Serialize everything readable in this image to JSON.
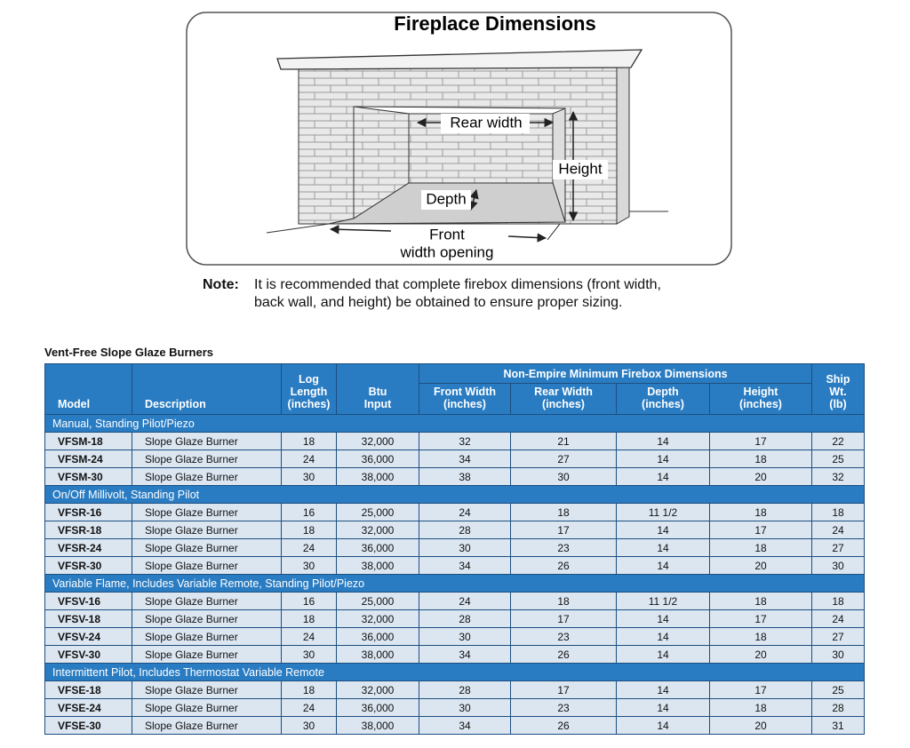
{
  "diagram": {
    "title": "Fireplace Dimensions",
    "labels": {
      "rear_width": "Rear width",
      "height": "Height",
      "depth": "Depth",
      "front_width": [
        "Front",
        "width opening"
      ]
    }
  },
  "note": {
    "label": "Note:",
    "lines": [
      "It is recommended that complete firebox dimensions (front width,",
      "back wall, and height) be obtained to ensure proper sizing."
    ]
  },
  "table": {
    "title": "Vent-Free Slope Glaze Burners",
    "group_header": "Non-Empire Minimum Firebox Dimensions",
    "columns": [
      [
        "Model"
      ],
      [
        "Description"
      ],
      [
        "Log",
        "Length",
        "(inches)"
      ],
      [
        "Btu",
        "Input"
      ],
      [
        "Front Width",
        "(inches)"
      ],
      [
        "Rear Width",
        "(inches)"
      ],
      [
        "Depth",
        "(inches)"
      ],
      [
        "Height",
        "(inches)"
      ],
      [
        "Ship",
        "Wt.",
        "(lb)"
      ]
    ],
    "groups": [
      {
        "name": "Manual, Standing Pilot/Piezo",
        "rows": [
          [
            "VFSM-18",
            "Slope Glaze Burner",
            "18",
            "32,000",
            "32",
            "21",
            "14",
            "17",
            "22"
          ],
          [
            "VFSM-24",
            "Slope Glaze Burner",
            "24",
            "36,000",
            "34",
            "27",
            "14",
            "18",
            "25"
          ],
          [
            "VFSM-30",
            "Slope Glaze Burner",
            "30",
            "38,000",
            "38",
            "30",
            "14",
            "20",
            "32"
          ]
        ]
      },
      {
        "name": "On/Off Millivolt, Standing Pilot",
        "rows": [
          [
            "VFSR-16",
            "Slope Glaze Burner",
            "16",
            "25,000",
            "24",
            "18",
            "11 1/2",
            "18",
            "18"
          ],
          [
            "VFSR-18",
            "Slope Glaze Burner",
            "18",
            "32,000",
            "28",
            "17",
            "14",
            "17",
            "24"
          ],
          [
            "VFSR-24",
            "Slope Glaze Burner",
            "24",
            "36,000",
            "30",
            "23",
            "14",
            "18",
            "27"
          ],
          [
            "VFSR-30",
            "Slope Glaze Burner",
            "30",
            "38,000",
            "34",
            "26",
            "14",
            "20",
            "30"
          ]
        ]
      },
      {
        "name": "Variable Flame, Includes Variable Remote, Standing Pilot/Piezo",
        "rows": [
          [
            "VFSV-16",
            "Slope Glaze Burner",
            "16",
            "25,000",
            "24",
            "18",
            "11 1/2",
            "18",
            "18"
          ],
          [
            "VFSV-18",
            "Slope Glaze Burner",
            "18",
            "32,000",
            "28",
            "17",
            "14",
            "17",
            "24"
          ],
          [
            "VFSV-24",
            "Slope Glaze Burner",
            "24",
            "36,000",
            "30",
            "23",
            "14",
            "18",
            "27"
          ],
          [
            "VFSV-30",
            "Slope Glaze Burner",
            "30",
            "38,000",
            "34",
            "26",
            "14",
            "20",
            "30"
          ]
        ]
      },
      {
        "name": "Intermittent Pilot, Includes Thermostat Variable Remote",
        "rows": [
          [
            "VFSE-18",
            "Slope Glaze Burner",
            "18",
            "32,000",
            "28",
            "17",
            "14",
            "17",
            "25"
          ],
          [
            "VFSE-24",
            "Slope Glaze Burner",
            "24",
            "36,000",
            "30",
            "23",
            "14",
            "18",
            "28"
          ],
          [
            "VFSE-30",
            "Slope Glaze Burner",
            "30",
            "38,000",
            "34",
            "26",
            "14",
            "20",
            "31"
          ]
        ]
      }
    ]
  }
}
